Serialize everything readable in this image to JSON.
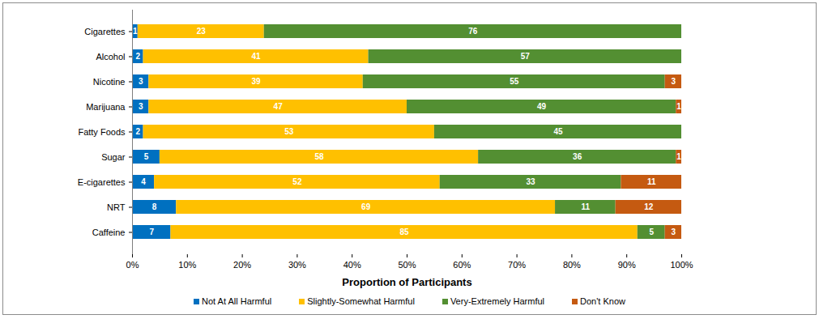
{
  "chart_data": {
    "type": "bar",
    "orientation": "horizontal",
    "stacked": true,
    "data_labels": true,
    "grid": false,
    "legend": "bottom",
    "xlabel": "Proportion of Participants",
    "categories": [
      "Cigarettes",
      "Alcohol",
      "Nicotine",
      "Marijuana",
      "Fatty Foods",
      "Sugar",
      "E-cigarettes",
      "NRT",
      "Caffeine"
    ],
    "series": [
      {
        "name": "Not At All Harmful",
        "color": "#0070c0",
        "values": [
          1,
          2,
          3,
          3,
          2,
          5,
          4,
          8,
          7
        ]
      },
      {
        "name": "Slightly-Somewhat Harmful",
        "color": "#ffc000",
        "values": [
          23,
          41,
          39,
          47,
          53,
          58,
          52,
          69,
          85
        ]
      },
      {
        "name": "Very-Extremely Harmful",
        "color": "#538f32",
        "values": [
          76,
          57,
          55,
          49,
          45,
          36,
          33,
          11,
          5
        ]
      },
      {
        "name": "Don't Know",
        "color": "#c55a11",
        "values": [
          null,
          null,
          3,
          1,
          null,
          1,
          11,
          12,
          3
        ]
      }
    ],
    "xlim": [
      0,
      100
    ],
    "xticks": [
      {
        "value": 0,
        "label": "0%"
      },
      {
        "value": 10,
        "label": "10%"
      },
      {
        "value": 20,
        "label": "20%"
      },
      {
        "value": 30,
        "label": "30%"
      },
      {
        "value": 40,
        "label": "40%"
      },
      {
        "value": 50,
        "label": "50%"
      },
      {
        "value": 60,
        "label": "60%"
      },
      {
        "value": 70,
        "label": "70%"
      },
      {
        "value": 80,
        "label": "80%"
      },
      {
        "value": 90,
        "label": "90%"
      },
      {
        "value": 100,
        "label": "100%"
      }
    ]
  }
}
